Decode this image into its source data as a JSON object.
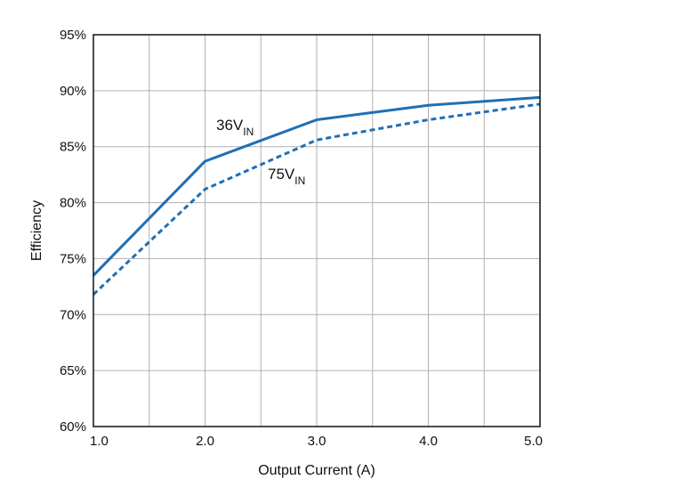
{
  "chart_data": {
    "type": "line",
    "xlabel": "Output Current (A)",
    "ylabel": "Efficiency",
    "xlim": [
      1.0,
      5.0
    ],
    "ylim": [
      60,
      95
    ],
    "x_ticks": [
      "1.0",
      "2.0",
      "3.0",
      "4.0",
      "5.0"
    ],
    "y_ticks": [
      "60%",
      "65%",
      "70%",
      "75%",
      "80%",
      "85%",
      "90%",
      "95%"
    ],
    "grid": true,
    "series": [
      {
        "label_main": "36V",
        "label_sub": "IN",
        "style": "solid",
        "color": "#1f6fb5",
        "x": [
          1.0,
          2.0,
          3.0,
          4.0,
          5.0
        ],
        "y": [
          73.5,
          83.7,
          87.4,
          88.7,
          89.4
        ]
      },
      {
        "label_main": "75V",
        "label_sub": "IN",
        "style": "dashed",
        "color": "#1f6fb5",
        "x": [
          1.0,
          2.0,
          3.0,
          4.0,
          5.0
        ],
        "y": [
          71.8,
          81.2,
          85.6,
          87.4,
          88.8
        ]
      }
    ]
  }
}
